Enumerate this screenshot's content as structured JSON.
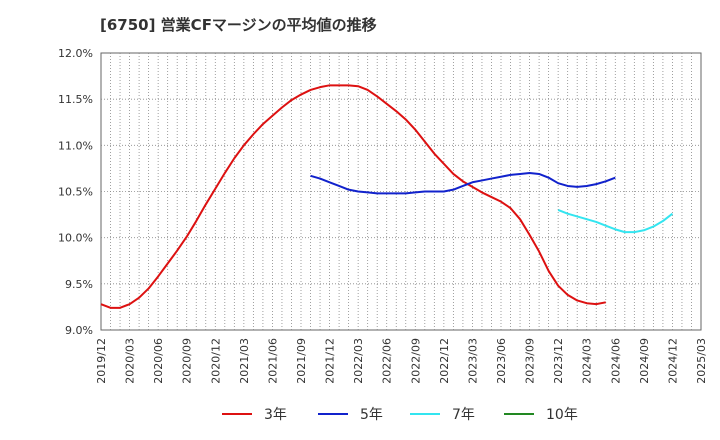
{
  "chart_data": {
    "type": "line",
    "title": "[6750]  営業CFマージンの平均値の推移",
    "xlabel": "",
    "ylabel": "",
    "y_unit": "%",
    "ylim": [
      9.0,
      12.0
    ],
    "yticks": [
      9.0,
      9.5,
      10.0,
      10.5,
      11.0,
      11.5,
      12.0
    ],
    "ytick_labels": [
      "9.0%",
      "9.5%",
      "10.0%",
      "10.5%",
      "11.0%",
      "11.5%",
      "12.0%"
    ],
    "xlim": [
      "2019-12",
      "2025-03"
    ],
    "xtick_labels": [
      "2019/12",
      "2020/03",
      "2020/06",
      "2020/09",
      "2020/12",
      "2021/03",
      "2021/06",
      "2021/09",
      "2021/12",
      "2022/03",
      "2022/06",
      "2022/09",
      "2022/12",
      "2023/03",
      "2023/06",
      "2023/09",
      "2023/12",
      "2024/03",
      "2024/06",
      "2024/09",
      "2024/12",
      "2025/03"
    ],
    "grid": true,
    "legend_position": "bottom",
    "series": [
      {
        "name": "3年",
        "color": "#dd1111",
        "points": [
          [
            "2019-12",
            9.28
          ],
          [
            "2020-01",
            9.24
          ],
          [
            "2020-02",
            9.24
          ],
          [
            "2020-03",
            9.28
          ],
          [
            "2020-04",
            9.35
          ],
          [
            "2020-05",
            9.45
          ],
          [
            "2020-06",
            9.58
          ],
          [
            "2020-07",
            9.72
          ],
          [
            "2020-08",
            9.86
          ],
          [
            "2020-09",
            10.01
          ],
          [
            "2020-10",
            10.18
          ],
          [
            "2020-11",
            10.36
          ],
          [
            "2020-12",
            10.53
          ],
          [
            "2021-01",
            10.7
          ],
          [
            "2021-02",
            10.86
          ],
          [
            "2021-03",
            11.0
          ],
          [
            "2021-04",
            11.12
          ],
          [
            "2021-05",
            11.23
          ],
          [
            "2021-06",
            11.32
          ],
          [
            "2021-07",
            11.41
          ],
          [
            "2021-08",
            11.49
          ],
          [
            "2021-09",
            11.55
          ],
          [
            "2021-10",
            11.6
          ],
          [
            "2021-11",
            11.63
          ],
          [
            "2021-12",
            11.65
          ],
          [
            "2022-01",
            11.65
          ],
          [
            "2022-02",
            11.65
          ],
          [
            "2022-03",
            11.64
          ],
          [
            "2022-04",
            11.6
          ],
          [
            "2022-05",
            11.53
          ],
          [
            "2022-06",
            11.45
          ],
          [
            "2022-07",
            11.37
          ],
          [
            "2022-08",
            11.28
          ],
          [
            "2022-09",
            11.17
          ],
          [
            "2022-10",
            11.04
          ],
          [
            "2022-11",
            10.91
          ],
          [
            "2022-12",
            10.8
          ],
          [
            "2023-01",
            10.69
          ],
          [
            "2023-02",
            10.61
          ],
          [
            "2023-03",
            10.55
          ],
          [
            "2023-04",
            10.49
          ],
          [
            "2023-05",
            10.44
          ],
          [
            "2023-06",
            10.39
          ],
          [
            "2023-07",
            10.32
          ],
          [
            "2023-08",
            10.2
          ],
          [
            "2023-09",
            10.03
          ],
          [
            "2023-10",
            9.85
          ],
          [
            "2023-11",
            9.64
          ],
          [
            "2023-12",
            9.48
          ],
          [
            "2024-01",
            9.38
          ],
          [
            "2024-02",
            9.32
          ],
          [
            "2024-03",
            9.29
          ],
          [
            "2024-04",
            9.28
          ],
          [
            "2024-05",
            9.3
          ]
        ]
      },
      {
        "name": "5年",
        "color": "#1122cc",
        "points": [
          [
            "2021-10",
            10.67
          ],
          [
            "2021-11",
            10.64
          ],
          [
            "2021-12",
            10.6
          ],
          [
            "2022-01",
            10.56
          ],
          [
            "2022-02",
            10.52
          ],
          [
            "2022-03",
            10.5
          ],
          [
            "2022-04",
            10.49
          ],
          [
            "2022-05",
            10.48
          ],
          [
            "2022-06",
            10.48
          ],
          [
            "2022-07",
            10.48
          ],
          [
            "2022-08",
            10.48
          ],
          [
            "2022-09",
            10.49
          ],
          [
            "2022-10",
            10.5
          ],
          [
            "2022-11",
            10.5
          ],
          [
            "2022-12",
            10.5
          ],
          [
            "2023-01",
            10.52
          ],
          [
            "2023-02",
            10.56
          ],
          [
            "2023-03",
            10.6
          ],
          [
            "2023-04",
            10.62
          ],
          [
            "2023-05",
            10.64
          ],
          [
            "2023-06",
            10.66
          ],
          [
            "2023-07",
            10.68
          ],
          [
            "2023-08",
            10.69
          ],
          [
            "2023-09",
            10.7
          ],
          [
            "2023-10",
            10.69
          ],
          [
            "2023-11",
            10.65
          ],
          [
            "2023-12",
            10.59
          ],
          [
            "2024-01",
            10.56
          ],
          [
            "2024-02",
            10.55
          ],
          [
            "2024-03",
            10.56
          ],
          [
            "2024-04",
            10.58
          ],
          [
            "2024-05",
            10.61
          ],
          [
            "2024-06",
            10.65
          ]
        ]
      },
      {
        "name": "7年",
        "color": "#33e5f0",
        "points": [
          [
            "2023-12",
            10.3
          ],
          [
            "2024-01",
            10.26
          ],
          [
            "2024-02",
            10.23
          ],
          [
            "2024-03",
            10.2
          ],
          [
            "2024-04",
            10.17
          ],
          [
            "2024-05",
            10.13
          ],
          [
            "2024-06",
            10.09
          ],
          [
            "2024-07",
            10.06
          ],
          [
            "2024-08",
            10.06
          ],
          [
            "2024-09",
            10.08
          ],
          [
            "2024-10",
            10.12
          ],
          [
            "2024-11",
            10.18
          ],
          [
            "2024-12",
            10.26
          ]
        ]
      },
      {
        "name": "10年",
        "color": "#228822",
        "points": []
      }
    ]
  }
}
